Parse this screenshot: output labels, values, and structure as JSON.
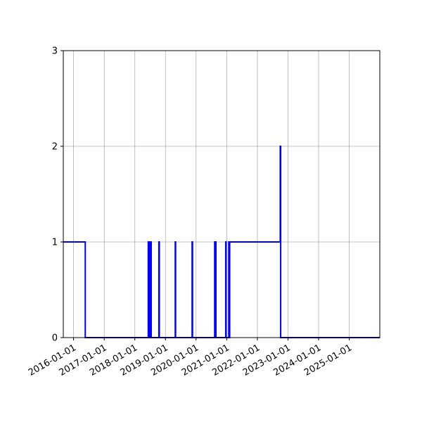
{
  "chart_data": {
    "type": "line",
    "title": "",
    "xlabel": "",
    "ylabel": "",
    "x_axis_type": "date",
    "xlim": [
      "2015-09-01",
      "2025-12-31"
    ],
    "ylim": [
      0,
      3
    ],
    "y_ticks": [
      0,
      1,
      2,
      3
    ],
    "x_ticks": [
      "2016-01-01",
      "2017-01-01",
      "2018-01-01",
      "2019-01-01",
      "2020-01-01",
      "2021-01-01",
      "2022-01-01",
      "2023-01-01",
      "2024-01-01",
      "2025-01-01"
    ],
    "x_tick_label_rotation_deg": 30,
    "grid": true,
    "legend": "none",
    "series": [
      {
        "color": "#0000ff",
        "drawstyle": "steps-post",
        "points": [
          [
            "2015-09-01",
            1
          ],
          [
            "2016-05-20",
            0
          ],
          [
            "2018-06-10",
            1
          ],
          [
            "2018-06-15",
            0
          ],
          [
            "2018-06-20",
            1
          ],
          [
            "2018-06-25",
            0
          ],
          [
            "2018-07-01",
            1
          ],
          [
            "2018-07-05",
            0
          ],
          [
            "2018-07-10",
            1
          ],
          [
            "2018-07-15",
            0
          ],
          [
            "2018-10-15",
            1
          ],
          [
            "2018-10-20",
            0
          ],
          [
            "2019-04-28",
            1
          ],
          [
            "2019-05-02",
            0
          ],
          [
            "2019-11-15",
            1
          ],
          [
            "2019-11-20",
            0
          ],
          [
            "2020-08-10",
            1
          ],
          [
            "2020-08-14",
            0
          ],
          [
            "2020-08-20",
            1
          ],
          [
            "2020-08-25",
            0
          ],
          [
            "2020-12-20",
            1
          ],
          [
            "2020-12-24",
            0
          ],
          [
            "2021-01-25",
            1
          ],
          [
            "2021-02-01",
            0
          ],
          [
            "2021-02-05",
            1
          ],
          [
            "2022-10-01",
            2
          ],
          [
            "2022-10-06",
            0
          ],
          [
            "2025-12-31",
            0
          ]
        ]
      }
    ]
  }
}
